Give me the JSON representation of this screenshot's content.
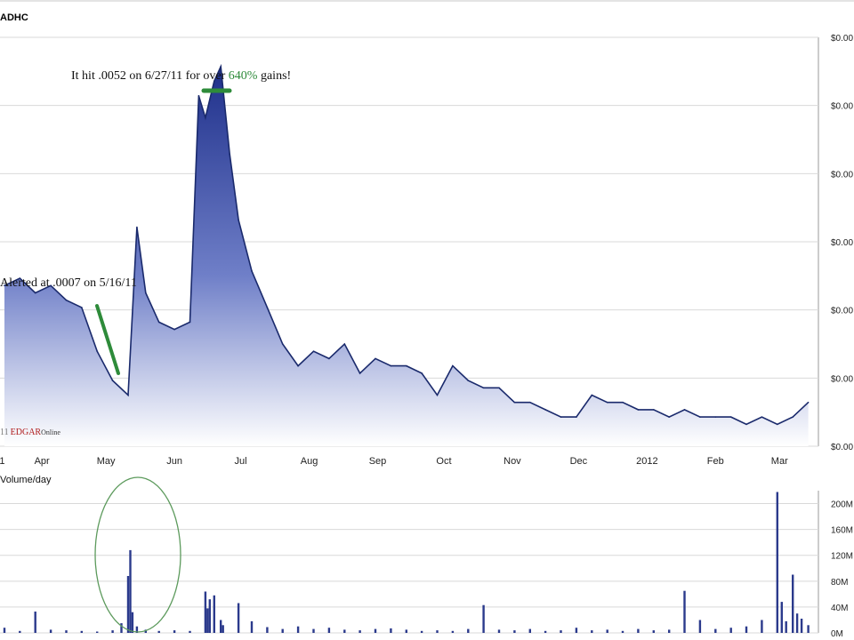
{
  "header": {
    "ticker": "ADHC"
  },
  "price_axis_ticks": [
    "$0.00",
    "$0.00",
    "$0.00",
    "$0.00",
    "$0.00",
    "$0.00",
    "$0.00"
  ],
  "volume_axis_ticks": [
    "0M",
    "40M",
    "80M",
    "120M",
    "160M",
    "200M"
  ],
  "month_labels": [
    "1",
    "Apr",
    "May",
    "Jun",
    "Jul",
    "Aug",
    "Sep",
    "Oct",
    "Nov",
    "Dec",
    "2012",
    "Feb",
    "Mar"
  ],
  "annotations": {
    "peak_prefix": "It hit .0052 on 6/27/11 for over ",
    "peak_pct": "640%",
    "peak_suffix": " gains!",
    "alert": "Alerted at .0007 on 5/16/11"
  },
  "watermark": {
    "year": "11",
    "brand": "EDGAR",
    "online": "Online"
  },
  "volume_label": "Volume/day",
  "colors": {
    "price_line": "#1a2a6c",
    "fill_top": "#1e2f8a",
    "fill_bottom": "#ffffff",
    "grid": "#d9d9d9",
    "volume_bar": "#2b3a8c",
    "highlight_green": "#2e8b3a",
    "circle": "#5c9a5c",
    "watermark_red": "#b01c1c"
  },
  "chart_data": [
    {
      "type": "area",
      "title": "ADHC",
      "ylabel": "",
      "y_unit": "USD",
      "ylim": [
        0,
        0.0056
      ],
      "grid": true,
      "x_axis_labels": [
        "1",
        "Apr",
        "May",
        "Jun",
        "Jul",
        "Aug",
        "Sep",
        "Oct",
        "Nov",
        "Dec",
        "2012",
        "Feb",
        "Mar"
      ],
      "x": [
        "2011-03-21",
        "2011-03-28",
        "2011-04-04",
        "2011-04-11",
        "2011-04-18",
        "2011-04-25",
        "2011-05-02",
        "2011-05-09",
        "2011-05-16",
        "2011-05-20",
        "2011-05-24",
        "2011-05-30",
        "2011-06-06",
        "2011-06-13",
        "2011-06-17",
        "2011-06-20",
        "2011-06-24",
        "2011-06-27",
        "2011-07-01",
        "2011-07-05",
        "2011-07-11",
        "2011-07-18",
        "2011-07-25",
        "2011-08-01",
        "2011-08-08",
        "2011-08-15",
        "2011-08-22",
        "2011-08-29",
        "2011-09-05",
        "2011-09-12",
        "2011-09-19",
        "2011-09-26",
        "2011-10-03",
        "2011-10-10",
        "2011-10-17",
        "2011-10-24",
        "2011-10-31",
        "2011-11-07",
        "2011-11-14",
        "2011-11-21",
        "2011-11-28",
        "2011-12-05",
        "2011-12-12",
        "2011-12-19",
        "2011-12-26",
        "2012-01-02",
        "2012-01-09",
        "2012-01-16",
        "2012-01-23",
        "2012-01-30",
        "2012-02-06",
        "2012-02-13",
        "2012-02-20",
        "2012-02-27",
        "2012-03-05",
        "2012-03-12",
        "2012-03-19"
      ],
      "series": [
        {
          "values": [
            0.0022,
            0.0023,
            0.0021,
            0.0022,
            0.002,
            0.0019,
            0.0013,
            0.0009,
            0.0007,
            0.003,
            0.0021,
            0.0017,
            0.0016,
            0.0017,
            0.0048,
            0.0045,
            0.005,
            0.0052,
            0.004,
            0.0031,
            0.0024,
            0.0019,
            0.0014,
            0.0011,
            0.0013,
            0.0012,
            0.0014,
            0.001,
            0.0012,
            0.0011,
            0.0011,
            0.001,
            0.0007,
            0.0011,
            0.0009,
            0.0008,
            0.0008,
            0.0006,
            0.0006,
            0.0005,
            0.0004,
            0.0004,
            0.0007,
            0.0006,
            0.0006,
            0.0005,
            0.0005,
            0.0004,
            0.0005,
            0.0004,
            0.0004,
            0.0004,
            0.0003,
            0.0004,
            0.0003,
            0.0004,
            0.0006
          ]
        }
      ]
    },
    {
      "type": "bar",
      "title": "Volume/day",
      "y_unit": "M",
      "ylim": [
        0,
        220
      ],
      "grid": true,
      "x": [
        "2011-03-21",
        "2011-03-28",
        "2011-04-04",
        "2011-04-11",
        "2011-04-18",
        "2011-04-25",
        "2011-05-02",
        "2011-05-09",
        "2011-05-13",
        "2011-05-16",
        "2011-05-17",
        "2011-05-18",
        "2011-05-20",
        "2011-05-24",
        "2011-05-30",
        "2011-06-06",
        "2011-06-13",
        "2011-06-20",
        "2011-06-21",
        "2011-06-22",
        "2011-06-24",
        "2011-06-27",
        "2011-06-28",
        "2011-07-05",
        "2011-07-11",
        "2011-07-18",
        "2011-07-25",
        "2011-08-01",
        "2011-08-08",
        "2011-08-15",
        "2011-08-22",
        "2011-08-29",
        "2011-09-05",
        "2011-09-12",
        "2011-09-19",
        "2011-09-26",
        "2011-10-03",
        "2011-10-10",
        "2011-10-17",
        "2011-10-24",
        "2011-10-31",
        "2011-11-07",
        "2011-11-14",
        "2011-11-21",
        "2011-11-28",
        "2011-12-05",
        "2011-12-12",
        "2011-12-19",
        "2011-12-26",
        "2012-01-02",
        "2012-01-09",
        "2012-01-16",
        "2012-01-23",
        "2012-01-30",
        "2012-02-06",
        "2012-02-13",
        "2012-02-20",
        "2012-02-27",
        "2012-03-05",
        "2012-03-07",
        "2012-03-09",
        "2012-03-12",
        "2012-03-14",
        "2012-03-16",
        "2012-03-19"
      ],
      "values": [
        8,
        3,
        33,
        5,
        4,
        3,
        2,
        4,
        15,
        88,
        128,
        32,
        10,
        5,
        3,
        4,
        3,
        64,
        38,
        52,
        58,
        20,
        12,
        46,
        18,
        9,
        6,
        10,
        6,
        8,
        5,
        4,
        6,
        7,
        5,
        3,
        4,
        3,
        6,
        43,
        5,
        4,
        6,
        3,
        4,
        8,
        4,
        5,
        3,
        6,
        4,
        5,
        65,
        20,
        6,
        8,
        10,
        20,
        218,
        48,
        18,
        90,
        30,
        22,
        12
      ]
    }
  ]
}
